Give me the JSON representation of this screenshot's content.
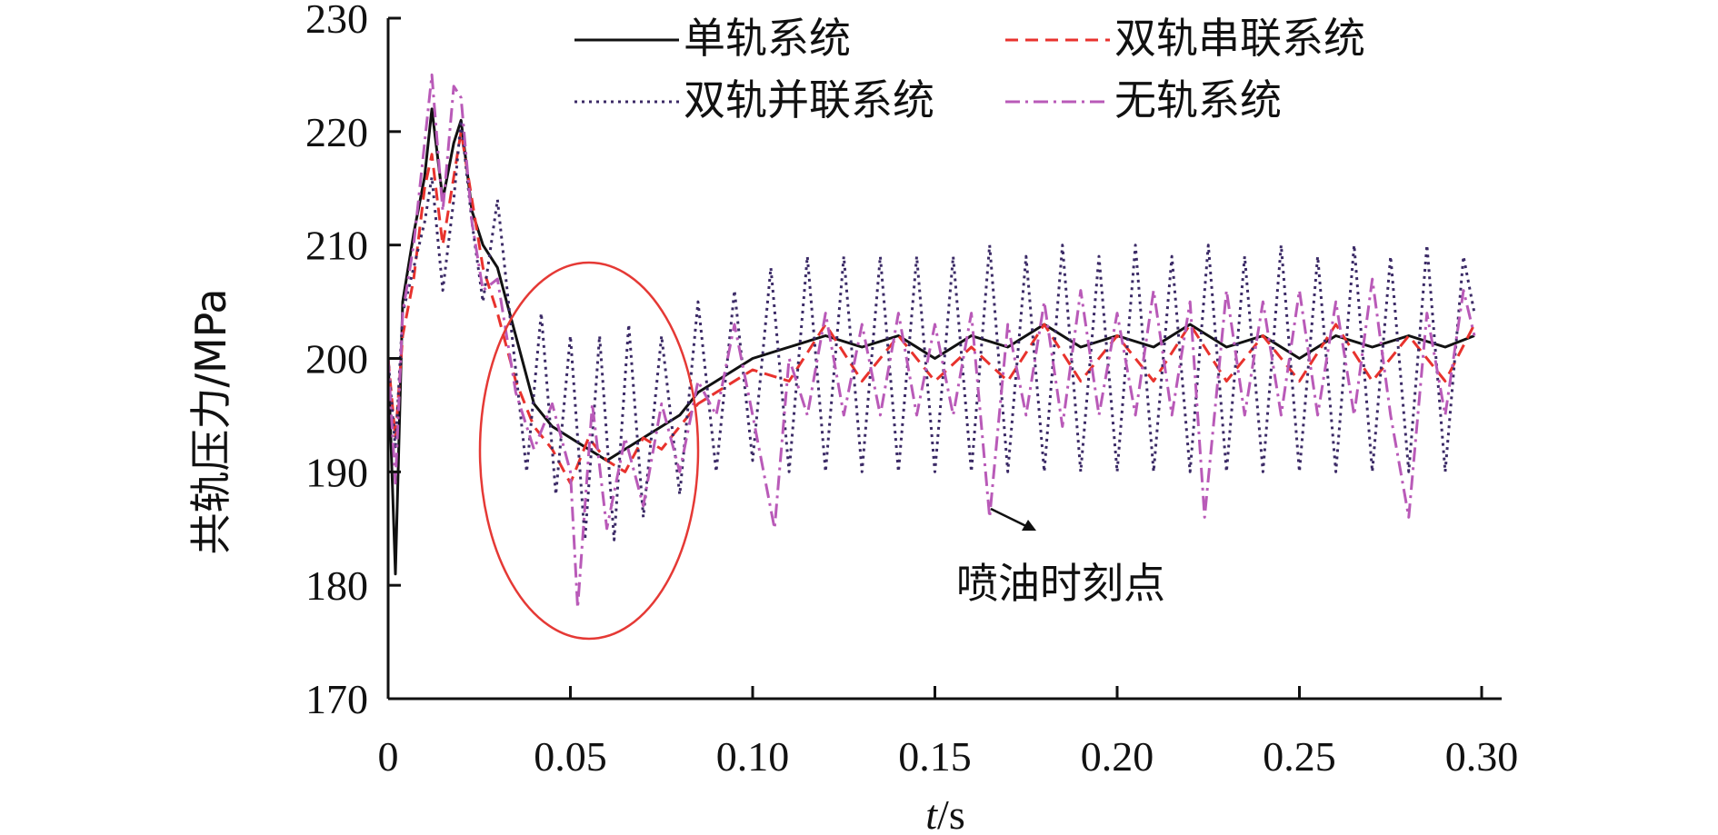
{
  "chart_data": {
    "type": "line",
    "title": "",
    "xlabel_italic": "t",
    "xlabel_unit": "/s",
    "ylabel": "共轨压力/MPa",
    "xlim": [
      0,
      0.3
    ],
    "ylim": [
      170,
      230
    ],
    "x_ticks": [
      "0",
      "0.05",
      "0.10",
      "0.15",
      "0.20",
      "0.25",
      "0.30"
    ],
    "x_tick_values": [
      0,
      0.05,
      0.1,
      0.15,
      0.2,
      0.25,
      0.3
    ],
    "y_ticks": [
      "170",
      "180",
      "190",
      "200",
      "210",
      "220",
      "230"
    ],
    "y_tick_values": [
      170,
      180,
      190,
      200,
      210,
      220,
      230
    ],
    "grid": false,
    "legend_position": "top",
    "annotation": {
      "text": "喷油时刻点",
      "points_to": [
        0.165,
        186
      ]
    },
    "highlight": "red ellipse around 0.03–0.085 s",
    "series": [
      {
        "name": "单轨系统",
        "color": "#111111",
        "dash": "solid",
        "x": [
          0,
          0.002,
          0.004,
          0.007,
          0.01,
          0.012,
          0.015,
          0.018,
          0.02,
          0.023,
          0.026,
          0.03,
          0.035,
          0.04,
          0.045,
          0.05,
          0.055,
          0.06,
          0.065,
          0.07,
          0.075,
          0.08,
          0.085,
          0.09,
          0.1,
          0.11,
          0.12,
          0.13,
          0.14,
          0.15,
          0.16,
          0.17,
          0.18,
          0.19,
          0.2,
          0.21,
          0.22,
          0.23,
          0.24,
          0.25,
          0.26,
          0.27,
          0.28,
          0.29,
          0.298
        ],
        "y": [
          200,
          181,
          205,
          211,
          216,
          222,
          214,
          219,
          221,
          213,
          210,
          208,
          202,
          196,
          194,
          193,
          192,
          191,
          192,
          193,
          194,
          195,
          197,
          198,
          200,
          201,
          202,
          201,
          202,
          200,
          202,
          201,
          203,
          201,
          202,
          201,
          203,
          201,
          202,
          200,
          202,
          201,
          202,
          201,
          202
        ]
      },
      {
        "name": "双轨串联系统",
        "color": "#e8322d",
        "dash": "dashed",
        "x": [
          0,
          0.002,
          0.004,
          0.007,
          0.01,
          0.012,
          0.015,
          0.018,
          0.02,
          0.023,
          0.026,
          0.03,
          0.035,
          0.04,
          0.045,
          0.05,
          0.055,
          0.06,
          0.065,
          0.07,
          0.075,
          0.08,
          0.085,
          0.09,
          0.1,
          0.11,
          0.12,
          0.13,
          0.14,
          0.15,
          0.16,
          0.17,
          0.18,
          0.19,
          0.2,
          0.21,
          0.22,
          0.23,
          0.24,
          0.25,
          0.26,
          0.27,
          0.28,
          0.29,
          0.298
        ],
        "y": [
          200,
          193,
          202,
          207,
          215,
          218,
          210,
          216,
          220,
          214,
          208,
          204,
          198,
          194,
          192,
          189,
          193,
          191,
          190,
          193,
          192,
          194,
          196,
          197,
          199,
          198,
          203,
          198,
          202,
          198,
          201,
          198,
          203,
          198,
          202,
          198,
          203,
          198,
          202,
          198,
          203,
          198,
          202,
          198,
          203
        ]
      },
      {
        "name": "双轨并联系统",
        "color": "#3b2a66",
        "dash": "dotted",
        "x": [
          0,
          0.002,
          0.004,
          0.007,
          0.01,
          0.012,
          0.015,
          0.018,
          0.02,
          0.023,
          0.026,
          0.03,
          0.034,
          0.038,
          0.042,
          0.046,
          0.05,
          0.054,
          0.058,
          0.062,
          0.066,
          0.07,
          0.075,
          0.08,
          0.085,
          0.09,
          0.095,
          0.1,
          0.105,
          0.11,
          0.115,
          0.12,
          0.125,
          0.13,
          0.135,
          0.14,
          0.145,
          0.15,
          0.155,
          0.16,
          0.165,
          0.17,
          0.175,
          0.18,
          0.185,
          0.19,
          0.195,
          0.2,
          0.205,
          0.21,
          0.215,
          0.22,
          0.225,
          0.23,
          0.235,
          0.24,
          0.245,
          0.25,
          0.255,
          0.26,
          0.265,
          0.27,
          0.275,
          0.28,
          0.285,
          0.29,
          0.295,
          0.298
        ],
        "y": [
          200,
          192,
          204,
          208,
          212,
          216,
          206,
          214,
          221,
          212,
          205,
          214,
          202,
          190,
          204,
          188,
          202,
          184,
          202,
          184,
          203,
          186,
          202,
          188,
          205,
          190,
          206,
          191,
          208,
          190,
          209,
          190,
          209,
          190,
          209,
          190,
          209,
          190,
          209,
          190,
          210,
          190,
          209,
          190,
          210,
          190,
          209,
          190,
          210,
          190,
          209,
          190,
          210,
          190,
          209,
          190,
          210,
          190,
          209,
          190,
          210,
          190,
          209,
          190,
          210,
          190,
          209,
          204
        ]
      },
      {
        "name": "无轨系统",
        "color": "#b95ab8",
        "dash": "dashdot",
        "x": [
          0,
          0.002,
          0.004,
          0.007,
          0.01,
          0.012,
          0.015,
          0.018,
          0.02,
          0.023,
          0.026,
          0.03,
          0.035,
          0.04,
          0.045,
          0.05,
          0.052,
          0.056,
          0.06,
          0.065,
          0.07,
          0.075,
          0.08,
          0.085,
          0.09,
          0.095,
          0.1,
          0.106,
          0.11,
          0.115,
          0.12,
          0.125,
          0.13,
          0.135,
          0.14,
          0.145,
          0.15,
          0.155,
          0.16,
          0.165,
          0.17,
          0.175,
          0.18,
          0.185,
          0.19,
          0.195,
          0.2,
          0.205,
          0.21,
          0.215,
          0.22,
          0.224,
          0.23,
          0.235,
          0.24,
          0.245,
          0.25,
          0.255,
          0.26,
          0.265,
          0.27,
          0.275,
          0.28,
          0.285,
          0.29,
          0.295,
          0.298
        ],
        "y": [
          200,
          189,
          204,
          210,
          219,
          225,
          213,
          224,
          223,
          212,
          206,
          207,
          197,
          192,
          196,
          190,
          178,
          196,
          185,
          193,
          187,
          196,
          190,
          198,
          195,
          203,
          195,
          185,
          200,
          195,
          204,
          195,
          203,
          195,
          204,
          195,
          203,
          195,
          204,
          186,
          203,
          195,
          205,
          194,
          206,
          195,
          204,
          195,
          206,
          195,
          205,
          186,
          206,
          195,
          205,
          195,
          206,
          195,
          205,
          195,
          207,
          195,
          186,
          204,
          195,
          206,
          202
        ]
      }
    ]
  }
}
